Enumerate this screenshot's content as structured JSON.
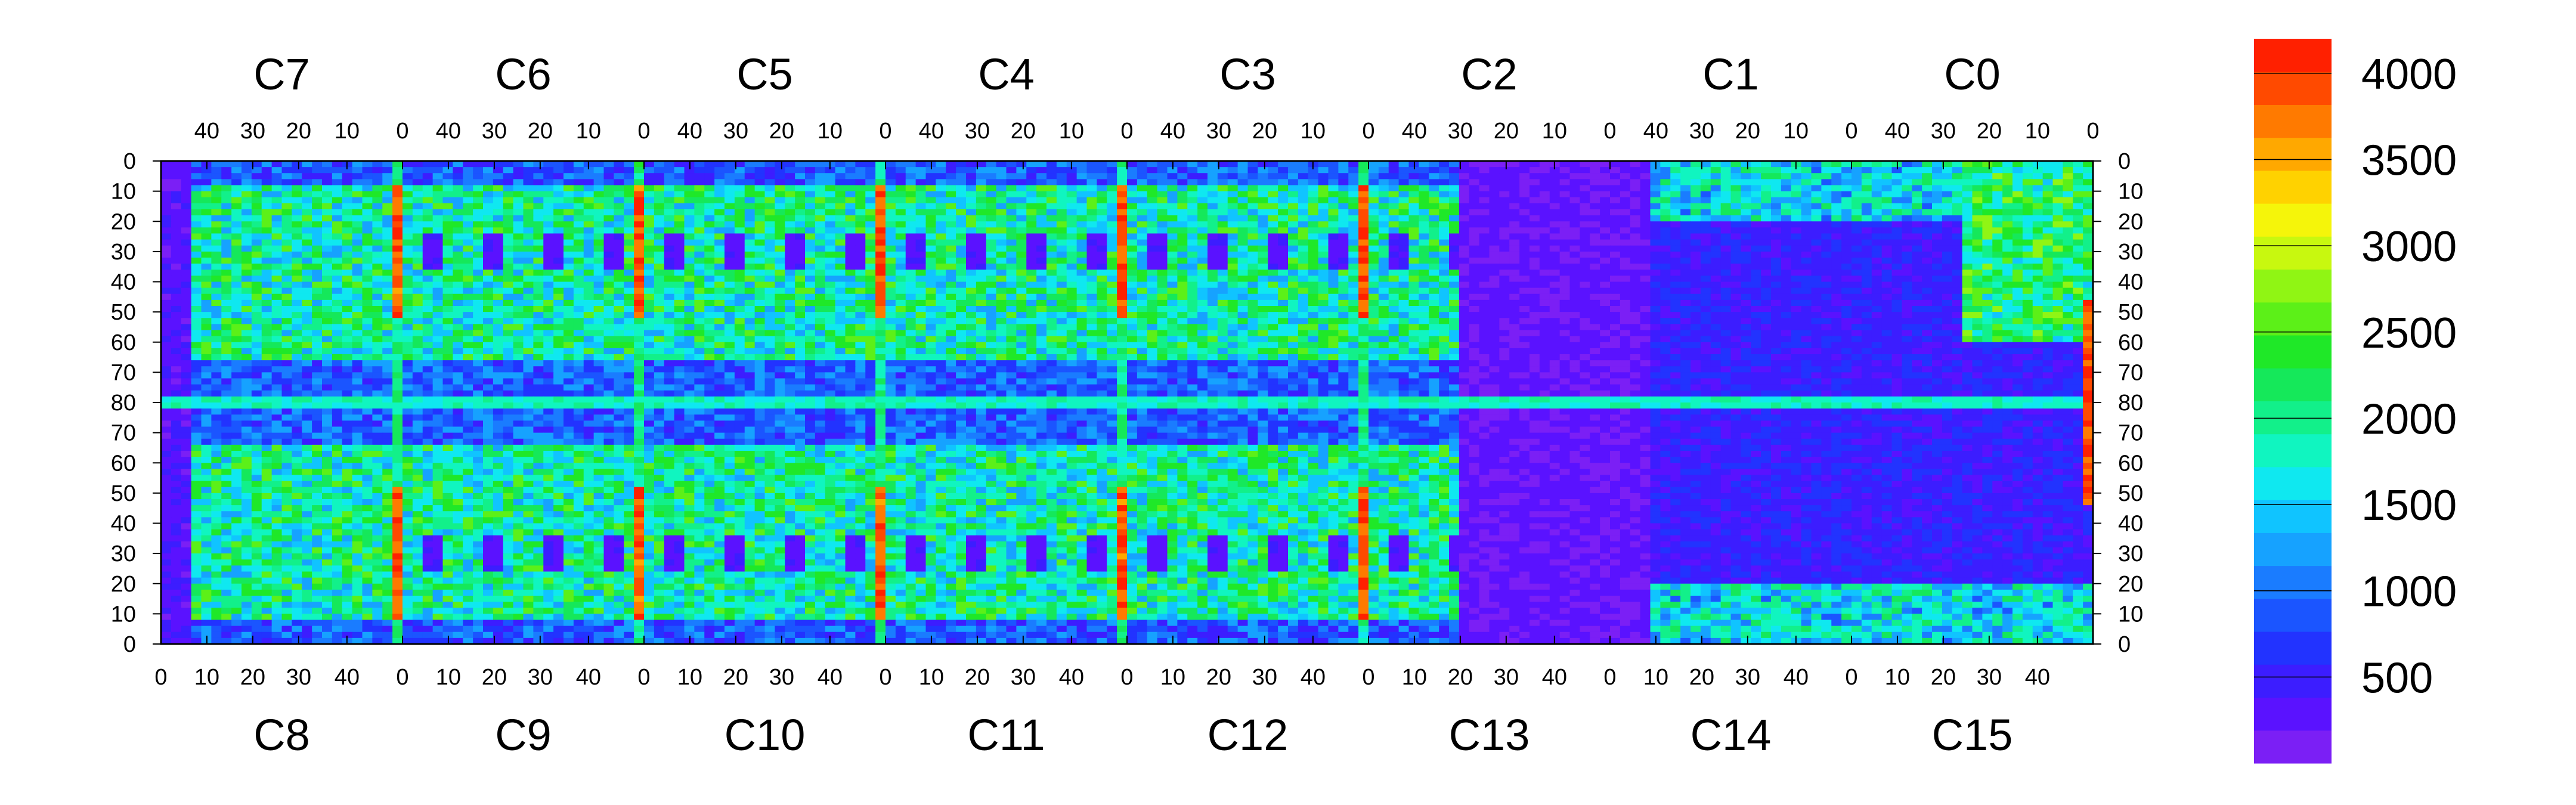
{
  "chart_data": {
    "type": "heatmap",
    "title": "",
    "xlabel": "",
    "ylabel": "",
    "top_chips": [
      "C7",
      "C6",
      "C5",
      "C4",
      "C3",
      "C2",
      "C1",
      "C0"
    ],
    "bottom_chips": [
      "C8",
      "C9",
      "C10",
      "C11",
      "C12",
      "C13",
      "C14",
      "C15"
    ],
    "top_x_ticks": [
      "40",
      "30",
      "20",
      "10",
      "0"
    ],
    "bottom_x_ticks": [
      "0",
      "10",
      "20",
      "30",
      "40"
    ],
    "y_ticks": [
      "0",
      "10",
      "20",
      "30",
      "40",
      "50",
      "60",
      "70",
      "80",
      "70",
      "60",
      "50",
      "40",
      "30",
      "20",
      "10",
      "0"
    ],
    "chip_columns": 52,
    "chip_rows": 80,
    "colorbar": {
      "min": 0,
      "max": 4200,
      "ticks": [
        500,
        1000,
        1500,
        2000,
        2500,
        3000,
        3500,
        4000
      ],
      "colors": [
        "#7b1ff5",
        "#5a12ff",
        "#3c1dff",
        "#2233ff",
        "#1b55ff",
        "#1a7cff",
        "#16a2ff",
        "#10c4ff",
        "#0fe8f0",
        "#10f5c0",
        "#12f08a",
        "#15e85a",
        "#1fe828",
        "#5cf018",
        "#90f514",
        "#c8f80f",
        "#f5f50a",
        "#ffd200",
        "#ffa800",
        "#ff7a00",
        "#ff4a00",
        "#ff2000"
      ]
    },
    "description_regions": [
      {
        "region": "bad column (0)",
        "value_range": [
          3500,
          4200
        ]
      },
      {
        "region": "central row 80",
        "value_range": [
          1500,
          2100
        ]
      },
      {
        "region": "chip interiors active",
        "value_range": [
          1200,
          2800
        ]
      },
      {
        "region": "low regions (C13-C15 area)",
        "value_range": [
          0,
          700
        ]
      }
    ]
  }
}
